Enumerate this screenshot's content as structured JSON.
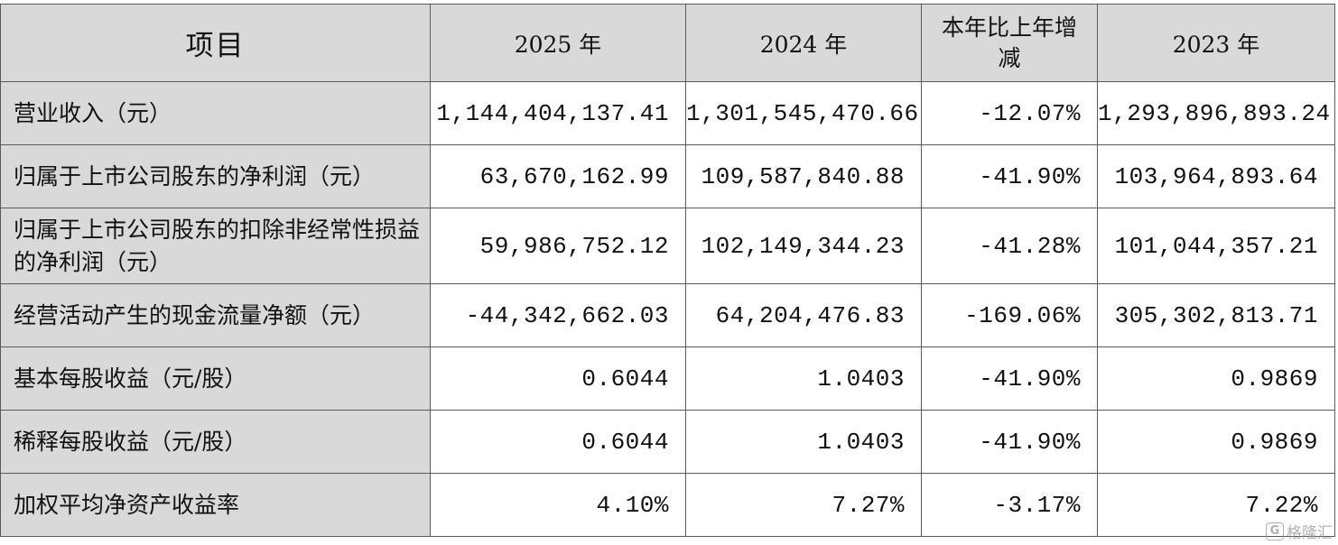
{
  "table": {
    "headers": {
      "item": "项目",
      "y2025": "2025 年",
      "y2024": "2024 年",
      "change": "本年比上年增减",
      "y2023": "2023 年"
    },
    "rows": [
      {
        "label": "营业收入（元）",
        "y2025": "1,144,404,137.41",
        "y2024": "1,301,545,470.66",
        "change": "-12.07%",
        "y2023": "1,293,896,893.24"
      },
      {
        "label": "归属于上市公司股东的净利润（元）",
        "y2025": "63,670,162.99",
        "y2024": "109,587,840.88",
        "change": "-41.90%",
        "y2023": "103,964,893.64"
      },
      {
        "label": "归属于上市公司股东的扣除非经常性损益的净利润（元）",
        "y2025": "59,986,752.12",
        "y2024": "102,149,344.23",
        "change": "-41.28%",
        "y2023": "101,044,357.21"
      },
      {
        "label": "经营活动产生的现金流量净额（元）",
        "y2025": "-44,342,662.03",
        "y2024": "64,204,476.83",
        "change": "-169.06%",
        "y2023": "305,302,813.71"
      },
      {
        "label": "基本每股收益（元/股）",
        "y2025": "0.6044",
        "y2024": "1.0403",
        "change": "-41.90%",
        "y2023": "0.9869"
      },
      {
        "label": "稀释每股收益（元/股）",
        "y2025": "0.6044",
        "y2024": "1.0403",
        "change": "-41.90%",
        "y2023": "0.9869"
      },
      {
        "label": "加权平均净资产收益率",
        "y2025": "4.10%",
        "y2024": "7.27%",
        "change": "-3.17%",
        "y2023": "7.22%"
      }
    ]
  },
  "watermark": {
    "icon": "gelonghui-logo-icon",
    "glyph": "G",
    "text": "格隆汇"
  }
}
